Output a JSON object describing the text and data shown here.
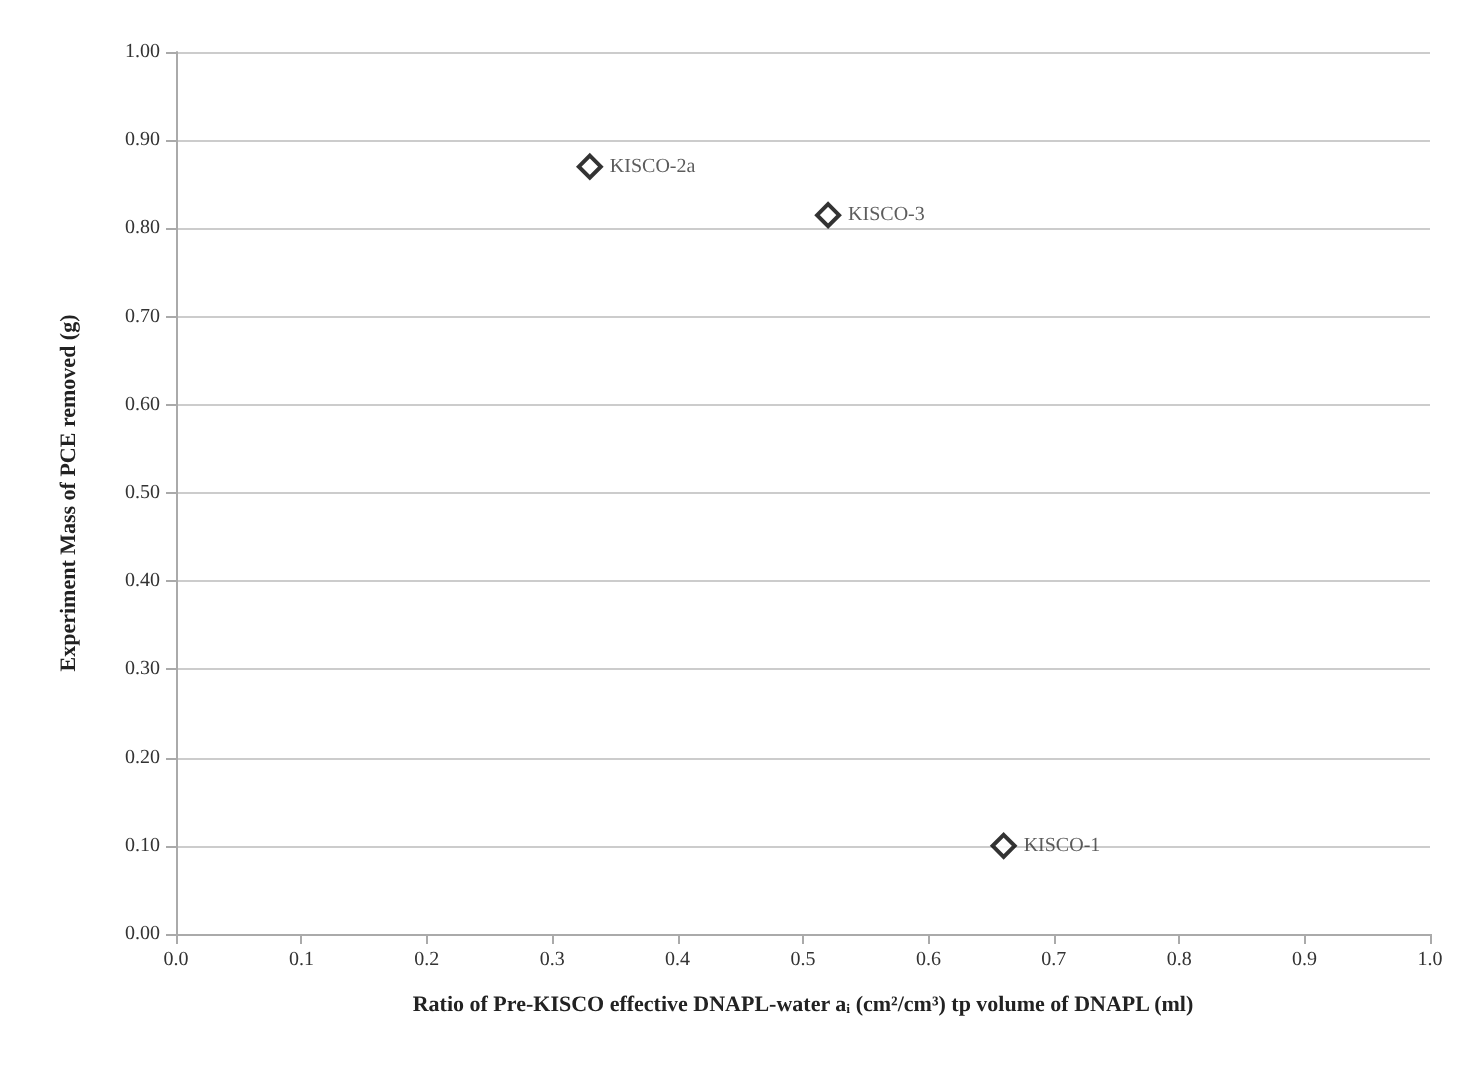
{
  "chart_data": {
    "type": "scatter",
    "xlabel": "Ratio of Pre-KISCO effective DNAPL-water aᵢ (cm²/cm³) tp volume of DNAPL (ml)",
    "ylabel": "Experiment Mass of PCE removed (g)",
    "x": [
      0.33,
      0.52,
      0.66
    ],
    "series": [
      {
        "color": "#000000",
        "values": [
          0.87,
          0.815,
          0.1
        ]
      }
    ],
    "annotations": [
      {
        "text": "KISCO-2a",
        "x": 0.33,
        "y": 0.87
      },
      {
        "text": "KISCO-3",
        "x": 0.52,
        "y": 0.815
      },
      {
        "text": "KISCO-1",
        "x": 0.66,
        "y": 0.1
      }
    ],
    "xlim": [
      0,
      1
    ],
    "ylim": [
      0,
      1
    ],
    "xticks": [
      {
        "value": 0,
        "label": "0.0"
      },
      {
        "value": 0.1,
        "label": "0.1"
      },
      {
        "value": 0.2,
        "label": "0.2"
      },
      {
        "value": 0.3,
        "label": "0.3"
      },
      {
        "value": 0.4,
        "label": "0.4"
      },
      {
        "value": 0.5,
        "label": "0.5"
      },
      {
        "value": 0.6,
        "label": "0.6"
      },
      {
        "value": 0.7,
        "label": "0.7"
      },
      {
        "value": 0.8,
        "label": "0.8"
      },
      {
        "value": 0.9,
        "label": "0.9"
      },
      {
        "value": 1,
        "label": "1.0"
      }
    ],
    "yticks": [
      {
        "value": 0,
        "label": "0.00"
      },
      {
        "value": 0.1,
        "label": "0.10"
      },
      {
        "value": 0.2,
        "label": "0.20"
      },
      {
        "value": 0.3,
        "label": "0.30"
      },
      {
        "value": 0.4,
        "label": "0.40"
      },
      {
        "value": 0.5,
        "label": "0.50"
      },
      {
        "value": 0.6,
        "label": "0.60"
      },
      {
        "value": 0.7,
        "label": "0.70"
      },
      {
        "value": 0.8,
        "label": "0.80"
      },
      {
        "value": 0.9,
        "label": "0.90"
      },
      {
        "value": 1,
        "label": "1.00"
      }
    ],
    "grid": "y",
    "marker": "diamond"
  }
}
